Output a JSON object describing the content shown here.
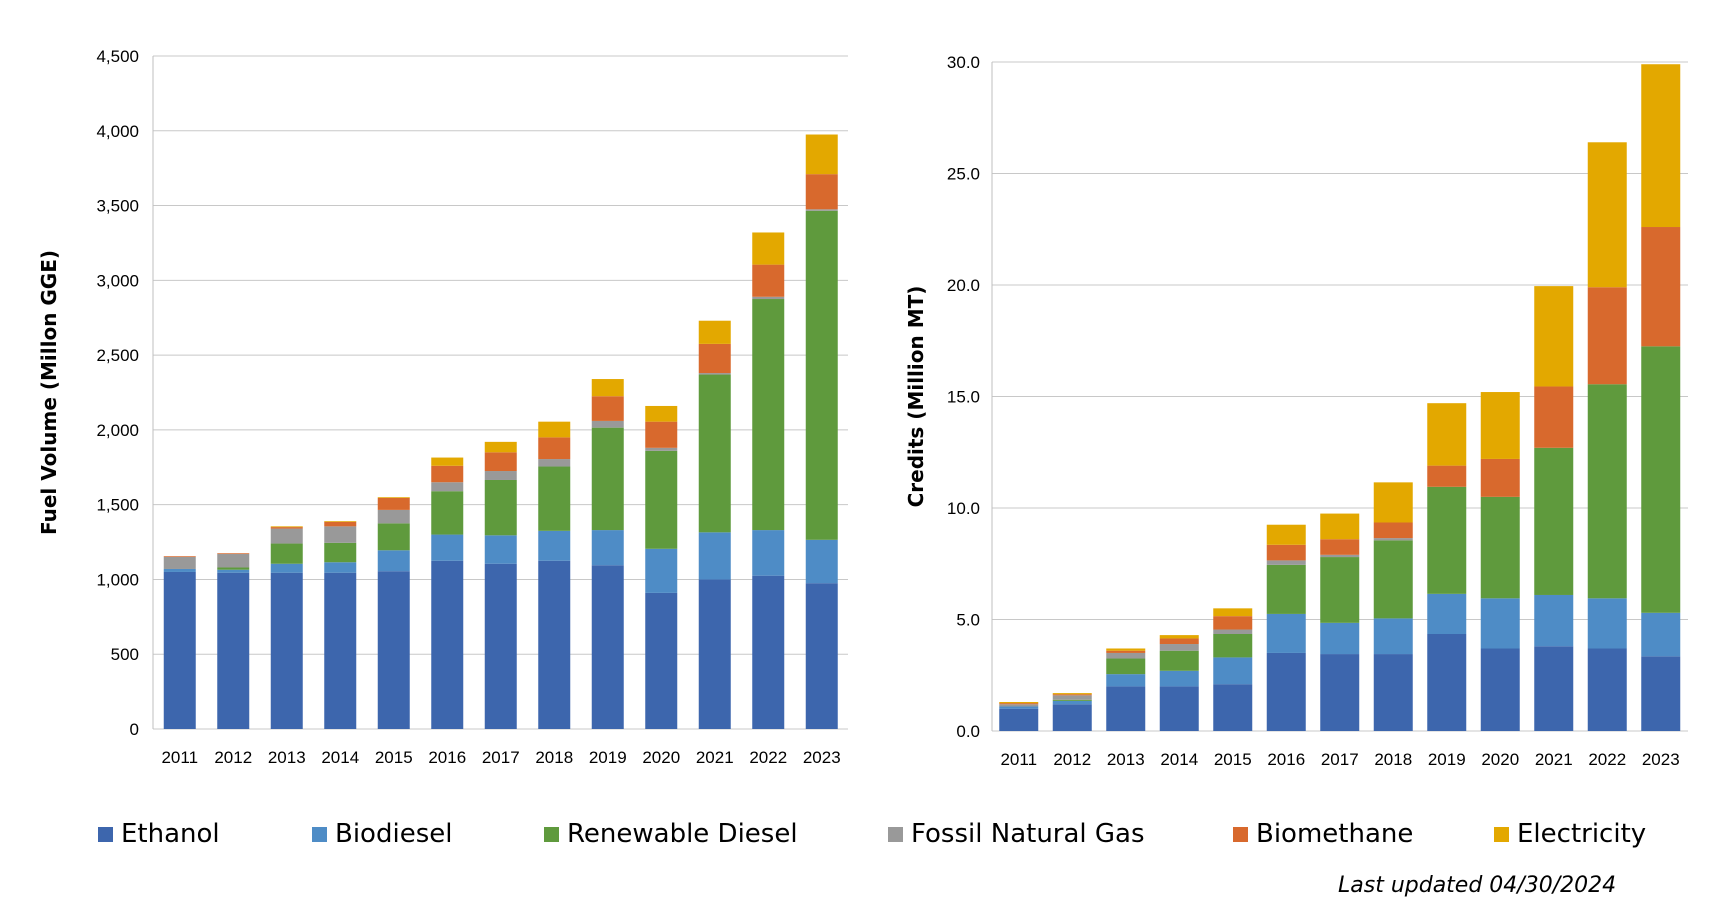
{
  "fuel_colors": {
    "Ethanol": "#3d66ad",
    "Biodiesel": "#4e8cc6",
    "Renewable Diesel": "#5f9a3d",
    "Fossil Natural Gas": "#999999",
    "Biomethane": "#d8692d",
    "Electricity": "#e3a800"
  },
  "legend": [
    {
      "label": "Ethanol",
      "color": "#3d66ad"
    },
    {
      "label": "Biodiesel",
      "color": "#4e8cc6"
    },
    {
      "label": "Renewable Diesel",
      "color": "#5f9a3d"
    },
    {
      "label": "Fossil Natural Gas",
      "color": "#999999"
    },
    {
      "label": "Biomethane",
      "color": "#d8692d"
    },
    {
      "label": "Electricity",
      "color": "#e3a800"
    }
  ],
  "footer": {
    "last_updated": "Last updated 04/30/2024"
  },
  "chart_data": [
    {
      "type": "bar",
      "stacked": true,
      "title": "",
      "xlabel": "",
      "ylabel": "Fuel Volume (Millon GGE)",
      "ylim": [
        0,
        4500
      ],
      "yticks": [
        0,
        500,
        1000,
        1500,
        2000,
        2500,
        3000,
        3500,
        4000,
        4500
      ],
      "ytick_labels": [
        "0",
        "500",
        "1,000",
        "1,500",
        "2,000",
        "2,500",
        "3,000",
        "3,500",
        "4,000",
        "4,500"
      ],
      "grid": true,
      "legend_position": "bottom",
      "categories": [
        "2011",
        "2012",
        "2013",
        "2014",
        "2015",
        "2016",
        "2017",
        "2018",
        "2019",
        "2020",
        "2021",
        "2022",
        "2023"
      ],
      "series": [
        {
          "name": "Ethanol",
          "values": [
            1050,
            1045,
            1045,
            1045,
            1055,
            1125,
            1105,
            1125,
            1095,
            910,
            1000,
            1025,
            975
          ]
        },
        {
          "name": "Biodiesel",
          "values": [
            20,
            20,
            60,
            70,
            140,
            175,
            190,
            200,
            235,
            295,
            315,
            305,
            290
          ]
        },
        {
          "name": "Renewable Diesel",
          "values": [
            0,
            15,
            135,
            130,
            180,
            290,
            370,
            430,
            685,
            655,
            1055,
            1545,
            2200
          ]
        },
        {
          "name": "Fossil Natural Gas",
          "values": [
            80,
            90,
            100,
            110,
            90,
            60,
            60,
            50,
            45,
            20,
            10,
            15,
            10
          ]
        },
        {
          "name": "Biomethane",
          "values": [
            5,
            5,
            10,
            30,
            80,
            110,
            125,
            145,
            165,
            175,
            195,
            215,
            235
          ]
        },
        {
          "name": "Electricity",
          "values": [
            0,
            0,
            5,
            5,
            5,
            55,
            70,
            105,
            115,
            105,
            155,
            215,
            265
          ]
        }
      ]
    },
    {
      "type": "bar",
      "stacked": true,
      "title": "",
      "xlabel": "",
      "ylabel": "Credits (Million  MT)",
      "ylim": [
        0,
        30
      ],
      "yticks": [
        0,
        5,
        10,
        15,
        20,
        25,
        30
      ],
      "ytick_labels": [
        "0.0",
        "5.0",
        "10.0",
        "15.0",
        "20.0",
        "25.0",
        "30.0"
      ],
      "grid": true,
      "legend_position": "bottom",
      "categories": [
        "2011",
        "2012",
        "2013",
        "2014",
        "2015",
        "2016",
        "2017",
        "2018",
        "2019",
        "2020",
        "2021",
        "2022",
        "2023"
      ],
      "series": [
        {
          "name": "Ethanol",
          "values": [
            1.0,
            1.2,
            2.0,
            2.0,
            2.1,
            3.5,
            3.45,
            3.45,
            4.35,
            3.7,
            3.8,
            3.7,
            3.35
          ]
        },
        {
          "name": "Biodiesel",
          "values": [
            0.1,
            0.15,
            0.55,
            0.7,
            1.2,
            1.75,
            1.4,
            1.6,
            1.8,
            2.25,
            2.3,
            2.25,
            1.95
          ]
        },
        {
          "name": "Renewable Diesel",
          "values": [
            0.0,
            0.05,
            0.7,
            0.9,
            1.05,
            2.2,
            2.95,
            3.5,
            4.8,
            4.55,
            6.6,
            9.6,
            11.95
          ]
        },
        {
          "name": "Fossil Natural Gas",
          "values": [
            0.1,
            0.2,
            0.25,
            0.3,
            0.2,
            0.2,
            0.1,
            0.1,
            0.0,
            0.0,
            0.0,
            0.0,
            0.0
          ]
        },
        {
          "name": "Biomethane",
          "values": [
            0.05,
            0.05,
            0.1,
            0.25,
            0.6,
            0.7,
            0.7,
            0.7,
            0.95,
            1.7,
            2.75,
            4.35,
            5.35
          ]
        },
        {
          "name": "Electricity",
          "values": [
            0.05,
            0.05,
            0.1,
            0.15,
            0.35,
            0.9,
            1.15,
            1.8,
            2.8,
            3.0,
            4.5,
            6.5,
            7.3
          ]
        }
      ]
    }
  ]
}
